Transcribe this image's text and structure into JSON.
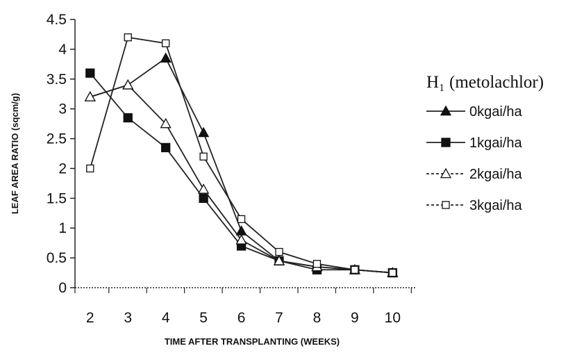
{
  "chart_data": {
    "type": "line",
    "title": "",
    "xlabel": "TIME AFTER TRANSPLANTING (WEEKS)",
    "ylabel": "LEAF AREA RATIO (sqcm/g)",
    "x_ticks": [
      "2",
      "3",
      "4",
      "5",
      "6",
      "7",
      "8",
      "9",
      "10"
    ],
    "y_ticks": [
      "0",
      "0.5",
      "1",
      "1.5",
      "2",
      "2.5",
      "3",
      "3.5",
      "4",
      "4.5"
    ],
    "ylim": [
      0,
      4.5
    ],
    "xlim": [
      1.6,
      10.6
    ],
    "grid": false,
    "legend": {
      "title": "H₁ (metolachlor)",
      "position": "right"
    },
    "series": [
      {
        "name": "0kgai/ha",
        "marker": "triangle-filled",
        "points": [
          [
            2,
            3.2
          ],
          [
            3,
            3.4
          ],
          [
            4,
            3.85
          ],
          [
            5,
            2.6
          ],
          [
            6,
            0.95
          ],
          [
            7,
            0.45
          ],
          [
            8,
            0.35
          ],
          [
            9,
            0.3
          ],
          [
            10,
            0.25
          ]
        ]
      },
      {
        "name": "1kgai/ha",
        "marker": "square-filled",
        "points": [
          [
            2,
            3.6
          ],
          [
            3,
            2.85
          ],
          [
            4,
            2.35
          ],
          [
            5,
            1.5
          ],
          [
            6,
            0.7
          ],
          [
            7,
            0.45
          ],
          [
            8,
            0.3
          ],
          [
            9,
            0.3
          ],
          [
            10,
            0.25
          ]
        ]
      },
      {
        "name": "2kgai/ha",
        "marker": "triangle-open",
        "points": [
          [
            2,
            3.2
          ],
          [
            3,
            3.4
          ],
          [
            4,
            2.75
          ],
          [
            5,
            1.65
          ],
          [
            6,
            0.8
          ],
          [
            7,
            0.45
          ],
          [
            8,
            0.35
          ],
          [
            9,
            0.3
          ],
          [
            10,
            0.25
          ]
        ]
      },
      {
        "name": "3kgai/ha",
        "marker": "square-open",
        "points": [
          [
            2,
            2.0
          ],
          [
            3,
            4.2
          ],
          [
            4,
            4.1
          ],
          [
            5,
            2.2
          ],
          [
            6,
            1.15
          ],
          [
            7,
            0.6
          ],
          [
            8,
            0.4
          ],
          [
            9,
            0.3
          ],
          [
            10,
            0.25
          ]
        ]
      }
    ]
  }
}
